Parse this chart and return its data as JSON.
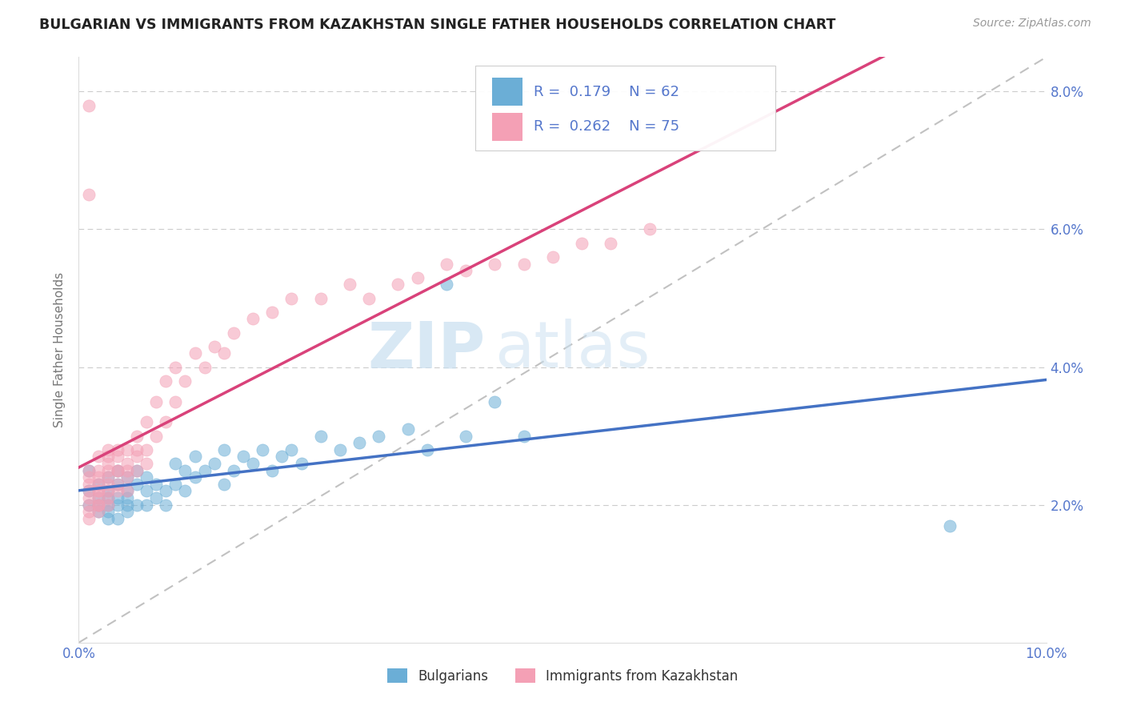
{
  "title": "BULGARIAN VS IMMIGRANTS FROM KAZAKHSTAN SINGLE FATHER HOUSEHOLDS CORRELATION CHART",
  "source": "Source: ZipAtlas.com",
  "ylabel": "Single Father Households",
  "xlim": [
    0.0,
    0.1
  ],
  "ylim": [
    0.0,
    0.085
  ],
  "legend_label1": "Bulgarians",
  "legend_label2": "Immigrants from Kazakhstan",
  "R1": 0.179,
  "N1": 62,
  "R2": 0.262,
  "N2": 75,
  "color1": "#6baed6",
  "color2": "#f4a0b5",
  "trendline1_color": "#4472c4",
  "trendline2_color": "#d9427a",
  "watermark_zip": "ZIP",
  "watermark_atlas": "atlas",
  "bg_color": "#ffffff",
  "trendline_dashed_color": "#bbbbbb",
  "tick_color": "#5577cc",
  "bulgarians_x": [
    0.001,
    0.001,
    0.001,
    0.002,
    0.002,
    0.002,
    0.002,
    0.003,
    0.003,
    0.003,
    0.003,
    0.003,
    0.003,
    0.004,
    0.004,
    0.004,
    0.004,
    0.004,
    0.005,
    0.005,
    0.005,
    0.005,
    0.005,
    0.006,
    0.006,
    0.006,
    0.007,
    0.007,
    0.007,
    0.008,
    0.008,
    0.009,
    0.009,
    0.01,
    0.01,
    0.011,
    0.011,
    0.012,
    0.012,
    0.013,
    0.014,
    0.015,
    0.015,
    0.016,
    0.017,
    0.018,
    0.019,
    0.02,
    0.021,
    0.022,
    0.023,
    0.025,
    0.027,
    0.029,
    0.031,
    0.034,
    0.036,
    0.038,
    0.04,
    0.043,
    0.046,
    0.09
  ],
  "bulgarians_y": [
    0.022,
    0.02,
    0.025,
    0.021,
    0.019,
    0.023,
    0.02,
    0.022,
    0.02,
    0.018,
    0.024,
    0.021,
    0.019,
    0.02,
    0.023,
    0.021,
    0.025,
    0.018,
    0.022,
    0.02,
    0.024,
    0.021,
    0.019,
    0.023,
    0.02,
    0.025,
    0.022,
    0.02,
    0.024,
    0.021,
    0.023,
    0.022,
    0.02,
    0.026,
    0.023,
    0.025,
    0.022,
    0.027,
    0.024,
    0.025,
    0.026,
    0.023,
    0.028,
    0.025,
    0.027,
    0.026,
    0.028,
    0.025,
    0.027,
    0.028,
    0.026,
    0.03,
    0.028,
    0.029,
    0.03,
    0.031,
    0.028,
    0.052,
    0.03,
    0.035,
    0.03,
    0.017
  ],
  "kazakhstan_x": [
    0.001,
    0.001,
    0.001,
    0.001,
    0.001,
    0.001,
    0.001,
    0.001,
    0.002,
    0.002,
    0.002,
    0.002,
    0.002,
    0.002,
    0.002,
    0.002,
    0.002,
    0.002,
    0.003,
    0.003,
    0.003,
    0.003,
    0.003,
    0.003,
    0.003,
    0.003,
    0.003,
    0.004,
    0.004,
    0.004,
    0.004,
    0.004,
    0.004,
    0.005,
    0.005,
    0.005,
    0.005,
    0.005,
    0.006,
    0.006,
    0.006,
    0.006,
    0.007,
    0.007,
    0.007,
    0.008,
    0.008,
    0.009,
    0.009,
    0.01,
    0.01,
    0.011,
    0.012,
    0.013,
    0.014,
    0.015,
    0.016,
    0.018,
    0.02,
    0.022,
    0.025,
    0.028,
    0.03,
    0.033,
    0.035,
    0.038,
    0.04,
    0.043,
    0.046,
    0.049,
    0.052,
    0.055,
    0.059,
    0.001,
    0.001
  ],
  "kazakhstan_y": [
    0.02,
    0.022,
    0.018,
    0.024,
    0.021,
    0.019,
    0.023,
    0.025,
    0.022,
    0.02,
    0.024,
    0.021,
    0.019,
    0.023,
    0.02,
    0.025,
    0.022,
    0.027,
    0.023,
    0.021,
    0.025,
    0.02,
    0.022,
    0.027,
    0.024,
    0.028,
    0.026,
    0.025,
    0.023,
    0.027,
    0.022,
    0.028,
    0.025,
    0.026,
    0.024,
    0.028,
    0.025,
    0.022,
    0.027,
    0.025,
    0.03,
    0.028,
    0.028,
    0.026,
    0.032,
    0.03,
    0.035,
    0.032,
    0.038,
    0.035,
    0.04,
    0.038,
    0.042,
    0.04,
    0.043,
    0.042,
    0.045,
    0.047,
    0.048,
    0.05,
    0.05,
    0.052,
    0.05,
    0.052,
    0.053,
    0.055,
    0.054,
    0.055,
    0.055,
    0.056,
    0.058,
    0.058,
    0.06,
    0.065,
    0.078
  ]
}
